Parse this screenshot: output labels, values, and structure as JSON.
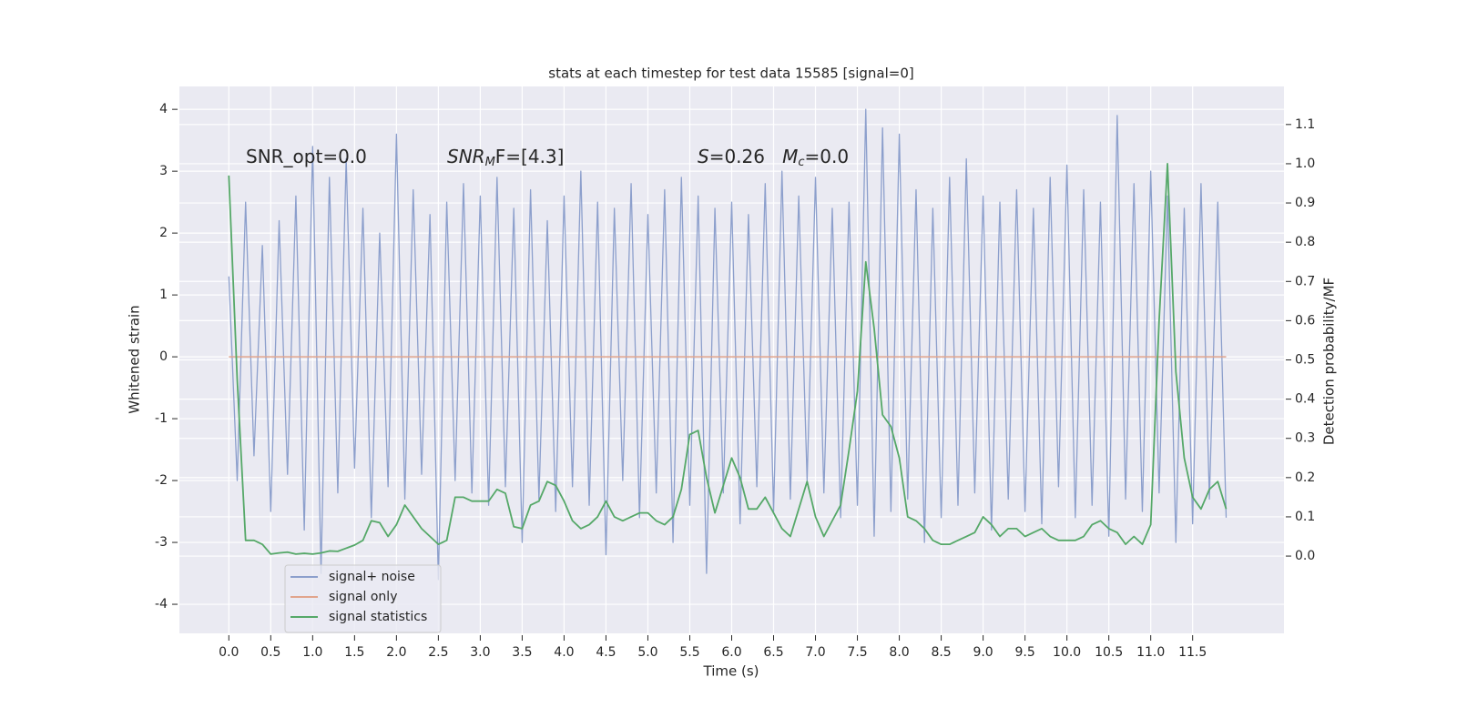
{
  "chart_data": {
    "type": "line",
    "title": "stats at each timestep for test data 15585 [signal=0]",
    "xlabel": "Time (s)",
    "ylabel": "Whitened strain",
    "y2label": "Detection probability/MF",
    "annotations": [
      [
        "SNR_opt=0.0"
      ],
      [
        "SNR",
        "M",
        "F=[4.3]"
      ],
      [
        "S",
        "=0.26   ",
        "M",
        "c",
        "=0.0"
      ]
    ],
    "x": [
      0,
      0.1,
      0.2,
      0.3,
      0.4,
      0.5,
      0.6,
      0.7,
      0.8,
      0.9,
      1,
      1.1,
      1.2,
      1.3,
      1.4,
      1.5,
      1.6,
      1.7,
      1.8,
      1.9,
      2,
      2.1,
      2.2,
      2.3,
      2.4,
      2.5,
      2.6,
      2.7,
      2.8,
      2.9,
      3,
      3.1,
      3.2,
      3.3,
      3.4,
      3.5,
      3.6,
      3.7,
      3.8,
      3.9,
      4,
      4.1,
      4.2,
      4.3,
      4.4,
      4.5,
      4.6,
      4.7,
      4.8,
      4.9,
      5,
      5.1,
      5.2,
      5.3,
      5.4,
      5.5,
      5.6,
      5.7,
      5.8,
      5.9,
      6,
      6.1,
      6.2,
      6.3,
      6.4,
      6.5,
      6.6,
      6.7,
      6.8,
      6.9,
      7,
      7.1,
      7.2,
      7.3,
      7.4,
      7.5,
      7.6,
      7.7,
      7.8,
      7.9,
      8,
      8.1,
      8.2,
      8.3,
      8.4,
      8.5,
      8.6,
      8.7,
      8.8,
      8.9,
      9,
      9.1,
      9.2,
      9.3,
      9.4,
      9.5,
      9.6,
      9.7,
      9.8,
      9.9,
      10,
      10.1,
      10.2,
      10.3,
      10.4,
      10.5,
      10.6,
      10.7,
      10.8,
      10.9,
      11,
      11.1,
      11.2,
      11.3,
      11.4,
      11.5,
      11.6,
      11.7,
      11.8,
      11.9
    ],
    "series": [
      {
        "name": "signal+ noise",
        "color": "#8c9fcc",
        "values": [
          1.3,
          -2.0,
          2.5,
          -1.6,
          1.8,
          -2.5,
          2.2,
          -1.9,
          2.6,
          -2.8,
          3.4,
          -3.5,
          2.9,
          -2.2,
          3.2,
          -1.8,
          2.4,
          -2.6,
          2.0,
          -2.1,
          3.6,
          -2.3,
          2.7,
          -1.9,
          2.3,
          -3.6,
          2.5,
          -2.0,
          2.8,
          -2.2,
          2.6,
          -2.4,
          2.9,
          -2.1,
          2.4,
          -3.0,
          2.7,
          -2.3,
          2.2,
          -2.5,
          2.6,
          -2.1,
          3.0,
          -2.4,
          2.5,
          -3.2,
          2.4,
          -2.0,
          2.8,
          -2.6,
          2.3,
          -2.2,
          2.7,
          -3.0,
          2.9,
          -2.4,
          2.6,
          -3.5,
          2.4,
          -2.2,
          2.5,
          -2.7,
          2.3,
          -2.1,
          2.8,
          -2.5,
          3.0,
          -2.3,
          2.6,
          -2.0,
          2.9,
          -2.2,
          2.4,
          -2.6,
          2.5,
          -2.4,
          4.0,
          -2.9,
          3.7,
          -2.5,
          3.6,
          -2.3,
          2.7,
          -3.0,
          2.4,
          -2.6,
          2.9,
          -2.4,
          3.2,
          -2.2,
          2.6,
          -2.8,
          2.5,
          -2.3,
          2.7,
          -2.5,
          2.4,
          -2.7,
          2.9,
          -2.1,
          3.1,
          -2.6,
          2.7,
          -2.4,
          2.5,
          -2.9,
          3.9,
          -2.3,
          2.8,
          -2.5,
          3.0,
          -2.2,
          2.6,
          -3.0,
          2.4,
          -2.7,
          2.8,
          -2.3,
          2.5,
          -2.6
        ]
      },
      {
        "name": "signal only",
        "color": "#e1a58c",
        "values": [
          0,
          0,
          0,
          0,
          0,
          0,
          0,
          0,
          0,
          0,
          0,
          0,
          0,
          0,
          0,
          0,
          0,
          0,
          0,
          0,
          0,
          0,
          0,
          0,
          0,
          0,
          0,
          0,
          0,
          0,
          0,
          0,
          0,
          0,
          0,
          0,
          0,
          0,
          0,
          0,
          0,
          0,
          0,
          0,
          0,
          0,
          0,
          0,
          0,
          0,
          0,
          0,
          0,
          0,
          0,
          0,
          0,
          0,
          0,
          0,
          0,
          0,
          0,
          0,
          0,
          0,
          0,
          0,
          0,
          0,
          0,
          0,
          0,
          0,
          0,
          0,
          0,
          0,
          0,
          0,
          0,
          0,
          0,
          0,
          0,
          0,
          0,
          0,
          0,
          0,
          0,
          0,
          0,
          0,
          0,
          0,
          0,
          0,
          0,
          0,
          0,
          0,
          0,
          0,
          0,
          0,
          0,
          0,
          0,
          0,
          0,
          0,
          0,
          0,
          0,
          0,
          0,
          0,
          0,
          0
        ]
      },
      {
        "name": "signal statistics",
        "color": "#55a868",
        "axis": "y2",
        "values": [
          0.97,
          0.45,
          0.04,
          0.04,
          0.03,
          0.005,
          0.008,
          0.01,
          0.005,
          0.007,
          0.005,
          0.008,
          0.013,
          0.012,
          0.02,
          0.028,
          0.04,
          0.09,
          0.085,
          0.05,
          0.08,
          0.13,
          0.1,
          0.07,
          0.05,
          0.03,
          0.04,
          0.15,
          0.15,
          0.14,
          0.14,
          0.14,
          0.17,
          0.16,
          0.075,
          0.07,
          0.13,
          0.14,
          0.19,
          0.18,
          0.14,
          0.09,
          0.07,
          0.08,
          0.1,
          0.14,
          0.1,
          0.09,
          0.1,
          0.11,
          0.11,
          0.09,
          0.08,
          0.1,
          0.17,
          0.31,
          0.32,
          0.2,
          0.11,
          0.18,
          0.25,
          0.2,
          0.12,
          0.12,
          0.15,
          0.11,
          0.07,
          0.05,
          0.12,
          0.19,
          0.1,
          0.05,
          0.09,
          0.13,
          0.27,
          0.42,
          0.75,
          0.58,
          0.36,
          0.33,
          0.25,
          0.1,
          0.09,
          0.07,
          0.04,
          0.03,
          0.03,
          0.04,
          0.05,
          0.06,
          0.1,
          0.08,
          0.05,
          0.07,
          0.07,
          0.05,
          0.06,
          0.07,
          0.05,
          0.04,
          0.04,
          0.04,
          0.05,
          0.08,
          0.09,
          0.07,
          0.06,
          0.03,
          0.05,
          0.03,
          0.08,
          0.6,
          1.0,
          0.47,
          0.25,
          0.15,
          0.12,
          0.17,
          0.19,
          0.12
        ]
      }
    ],
    "xlim": [
      -0.59,
      12.59
    ],
    "xticks": [
      {
        "value": 0,
        "label": "0.0"
      },
      0.5,
      {
        "value": 1,
        "label": "1.0"
      },
      1.5,
      {
        "value": 2,
        "label": "2.0"
      },
      2.5,
      {
        "value": 3,
        "label": "3.0"
      },
      3.5,
      {
        "value": 4,
        "label": "4.0"
      },
      4.5,
      {
        "value": 5,
        "label": "5.0"
      },
      5.5,
      {
        "value": 6,
        "label": "6.0"
      },
      6.5,
      {
        "value": 7,
        "label": "7.0"
      },
      7.5,
      {
        "value": 8,
        "label": "8.0"
      },
      8.5,
      {
        "value": 9,
        "label": "9.0"
      },
      9.5,
      {
        "value": 10,
        "label": "10.0"
      },
      10.5,
      {
        "value": 11,
        "label": "11.0"
      },
      11.5
    ],
    "ylim": [
      -4.47,
      4.37
    ],
    "yticks": [
      -4,
      -3,
      -2,
      -1,
      0,
      1,
      2,
      3,
      4
    ],
    "y2lim": [
      -0.197,
      1.197
    ],
    "y2ticks": [
      {
        "value": 0,
        "label": "0.0"
      },
      0.1,
      0.2,
      0.3,
      0.4,
      0.5,
      0.6,
      0.7,
      0.8,
      0.9,
      {
        "value": 1,
        "label": "1.0"
      },
      1.1
    ],
    "grid": true,
    "legend": "lower left"
  }
}
